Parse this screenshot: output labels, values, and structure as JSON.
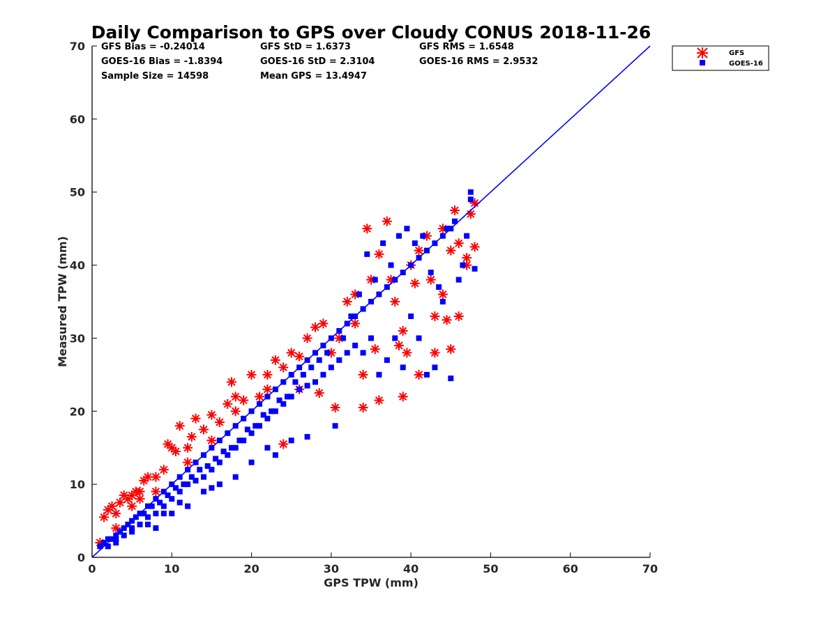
{
  "chart_data": {
    "type": "scatter",
    "title": "Daily Comparison to GPS over Cloudy CONUS 2018-11-26",
    "xlabel": "GPS TPW (mm)",
    "ylabel": "Measured TPW (mm)",
    "xlim": [
      0,
      70
    ],
    "ylim": [
      0,
      70
    ],
    "xticks": [
      "0",
      "10",
      "20",
      "30",
      "40",
      "50",
      "60",
      "70"
    ],
    "yticks": [
      "0",
      "10",
      "20",
      "30",
      "40",
      "50",
      "60",
      "70"
    ],
    "grid": false,
    "legend_position": "outside-top-right",
    "stats": [
      [
        "GFS Bias = -0.24014",
        "GFS StD = 1.6373",
        "GFS RMS = 1.6548"
      ],
      [
        "GOES-16 Bias = -1.8394",
        "GOES-16 StD = 2.3104",
        "GOES-16 RMS = 2.9532"
      ],
      [
        "Sample Size = 14598",
        "Mean GPS = 13.4947",
        ""
      ]
    ],
    "reference_line": {
      "x": [
        0,
        70
      ],
      "y": [
        0,
        70
      ],
      "color": "#0000ff"
    },
    "series": [
      {
        "name": "GFS",
        "marker": "asterisk",
        "color": "#ff0000",
        "points": [
          [
            1.5,
            5.5
          ],
          [
            2,
            6.5
          ],
          [
            2.5,
            7
          ],
          [
            3,
            6
          ],
          [
            3.5,
            7.5
          ],
          [
            4,
            8.5
          ],
          [
            4.5,
            8
          ],
          [
            5,
            8.5
          ],
          [
            5.5,
            9
          ],
          [
            6,
            9
          ],
          [
            6.5,
            10.5
          ],
          [
            7,
            11
          ],
          [
            8,
            11
          ],
          [
            9,
            12
          ],
          [
            9.5,
            15.5
          ],
          [
            10,
            15
          ],
          [
            10.5,
            14.5
          ],
          [
            11,
            18
          ],
          [
            12,
            15
          ],
          [
            12.5,
            16.5
          ],
          [
            13,
            19
          ],
          [
            14,
            17.5
          ],
          [
            15,
            19.5
          ],
          [
            16,
            18.5
          ],
          [
            17,
            21
          ],
          [
            17.5,
            24
          ],
          [
            18,
            22
          ],
          [
            19,
            21.5
          ],
          [
            20,
            25
          ],
          [
            21,
            22
          ],
          [
            22,
            23
          ],
          [
            23,
            27
          ],
          [
            24,
            26
          ],
          [
            24,
            15.5
          ],
          [
            25,
            28
          ],
          [
            26,
            27.5
          ],
          [
            27,
            30
          ],
          [
            28,
            31.5
          ],
          [
            28.5,
            22.5
          ],
          [
            29,
            32
          ],
          [
            30,
            28
          ],
          [
            30.5,
            20.5
          ],
          [
            31,
            30
          ],
          [
            32,
            35
          ],
          [
            33,
            36
          ],
          [
            34,
            25
          ],
          [
            34,
            20.5
          ],
          [
            34.5,
            45
          ],
          [
            35,
            38
          ],
          [
            35.5,
            28.5
          ],
          [
            36,
            41.5
          ],
          [
            36,
            21.5
          ],
          [
            37,
            46
          ],
          [
            37.5,
            38
          ],
          [
            38,
            35
          ],
          [
            38.5,
            29
          ],
          [
            39,
            22
          ],
          [
            39,
            31
          ],
          [
            40,
            40
          ],
          [
            40.5,
            37.5
          ],
          [
            41,
            42
          ],
          [
            41,
            25
          ],
          [
            42,
            44
          ],
          [
            42.5,
            38
          ],
          [
            43,
            33
          ],
          [
            43,
            28
          ],
          [
            44,
            45
          ],
          [
            44,
            36
          ],
          [
            44.5,
            32.5
          ],
          [
            45,
            42
          ],
          [
            45,
            28.5
          ],
          [
            45.5,
            47.5
          ],
          [
            46,
            43
          ],
          [
            46,
            33
          ],
          [
            47,
            40
          ],
          [
            47,
            41
          ],
          [
            47.5,
            47
          ],
          [
            48,
            42.5
          ],
          [
            48,
            48.5
          ],
          [
            39.5,
            28
          ],
          [
            33,
            32
          ],
          [
            26,
            23
          ],
          [
            22,
            25
          ],
          [
            18,
            20
          ],
          [
            15,
            16
          ],
          [
            12,
            13
          ],
          [
            8,
            9
          ],
          [
            6,
            8
          ],
          [
            5,
            7
          ],
          [
            3,
            4
          ],
          [
            1,
            2
          ]
        ]
      },
      {
        "name": "GOES-16",
        "marker": "square",
        "color": "#0000ff",
        "points": [
          [
            1,
            1.5
          ],
          [
            1.5,
            2
          ],
          [
            2,
            2.5
          ],
          [
            2.5,
            2.5
          ],
          [
            3,
            3
          ],
          [
            3,
            2
          ],
          [
            3.5,
            3.5
          ],
          [
            4,
            4
          ],
          [
            4,
            3
          ],
          [
            4.5,
            4.5
          ],
          [
            5,
            5
          ],
          [
            5,
            4
          ],
          [
            5.5,
            5.5
          ],
          [
            6,
            6
          ],
          [
            6,
            4.5
          ],
          [
            6.5,
            6
          ],
          [
            7,
            7
          ],
          [
            7,
            5.5
          ],
          [
            7.5,
            7
          ],
          [
            8,
            8
          ],
          [
            8,
            6
          ],
          [
            8.5,
            7.5
          ],
          [
            9,
            9
          ],
          [
            9,
            7
          ],
          [
            9.5,
            8.5
          ],
          [
            10,
            10
          ],
          [
            10,
            8
          ],
          [
            10.5,
            9.5
          ],
          [
            11,
            11
          ],
          [
            11,
            9
          ],
          [
            11.5,
            10
          ],
          [
            12,
            12
          ],
          [
            12,
            10
          ],
          [
            12.5,
            11
          ],
          [
            13,
            13
          ],
          [
            13,
            10.5
          ],
          [
            13.5,
            12
          ],
          [
            14,
            14
          ],
          [
            14,
            11
          ],
          [
            14.5,
            12.5
          ],
          [
            15,
            15
          ],
          [
            15,
            12
          ],
          [
            15.5,
            13.5
          ],
          [
            16,
            16
          ],
          [
            16,
            13
          ],
          [
            16.5,
            14.5
          ],
          [
            17,
            17
          ],
          [
            17,
            14
          ],
          [
            17.5,
            15
          ],
          [
            18,
            18
          ],
          [
            18,
            15
          ],
          [
            18.5,
            16
          ],
          [
            19,
            19
          ],
          [
            19,
            16
          ],
          [
            19.5,
            17.5
          ],
          [
            20,
            20
          ],
          [
            20,
            17
          ],
          [
            20.5,
            18
          ],
          [
            21,
            21
          ],
          [
            21,
            18
          ],
          [
            21.5,
            19.5
          ],
          [
            22,
            22
          ],
          [
            22,
            19
          ],
          [
            22.5,
            20
          ],
          [
            23,
            23
          ],
          [
            23,
            20
          ],
          [
            23.5,
            21.5
          ],
          [
            24,
            24
          ],
          [
            24,
            21
          ],
          [
            24.5,
            22
          ],
          [
            25,
            25
          ],
          [
            25,
            22
          ],
          [
            25.5,
            24
          ],
          [
            26,
            26
          ],
          [
            26,
            23
          ],
          [
            26.5,
            25
          ],
          [
            27,
            27
          ],
          [
            27,
            23.5
          ],
          [
            27.5,
            26
          ],
          [
            28,
            28
          ],
          [
            28,
            24
          ],
          [
            28.5,
            27
          ],
          [
            29,
            29
          ],
          [
            29,
            25
          ],
          [
            29.5,
            28
          ],
          [
            30,
            30
          ],
          [
            30,
            26
          ],
          [
            30.5,
            18
          ],
          [
            31,
            31
          ],
          [
            31,
            27
          ],
          [
            31.5,
            30
          ],
          [
            32,
            32
          ],
          [
            32,
            28
          ],
          [
            32.5,
            33
          ],
          [
            33,
            33
          ],
          [
            33,
            29
          ],
          [
            33.5,
            36
          ],
          [
            34,
            34
          ],
          [
            34,
            28
          ],
          [
            34.5,
            41.5
          ],
          [
            35,
            35
          ],
          [
            35,
            30
          ],
          [
            35.5,
            38
          ],
          [
            36,
            36
          ],
          [
            36,
            25
          ],
          [
            36.5,
            43
          ],
          [
            37,
            37
          ],
          [
            37,
            27
          ],
          [
            37.5,
            40
          ],
          [
            38,
            38
          ],
          [
            38,
            30
          ],
          [
            38.5,
            44
          ],
          [
            39,
            39
          ],
          [
            39,
            26
          ],
          [
            39.5,
            45
          ],
          [
            40,
            40
          ],
          [
            40,
            33
          ],
          [
            40.5,
            43
          ],
          [
            41,
            41
          ],
          [
            41,
            30
          ],
          [
            41.5,
            44
          ],
          [
            42,
            42
          ],
          [
            42,
            25
          ],
          [
            42.5,
            39
          ],
          [
            43,
            43
          ],
          [
            43,
            26
          ],
          [
            43.5,
            37
          ],
          [
            44,
            44
          ],
          [
            44,
            35
          ],
          [
            44.5,
            45
          ],
          [
            45,
            45
          ],
          [
            45,
            24.5
          ],
          [
            45.5,
            46
          ],
          [
            46,
            38
          ],
          [
            46.5,
            40
          ],
          [
            47,
            44
          ],
          [
            47.5,
            50
          ],
          [
            48,
            39.5
          ],
          [
            47.5,
            49
          ],
          [
            8,
            4
          ],
          [
            10,
            6
          ],
          [
            12,
            7
          ],
          [
            15,
            9.5
          ],
          [
            18,
            11
          ],
          [
            20,
            13
          ],
          [
            23,
            14
          ],
          [
            27,
            16.5
          ],
          [
            25,
            16
          ],
          [
            22,
            15
          ],
          [
            16,
            10
          ],
          [
            14,
            9
          ],
          [
            11,
            7.5
          ],
          [
            9,
            6
          ],
          [
            7,
            4.5
          ],
          [
            5,
            3.5
          ],
          [
            3,
            2.5
          ],
          [
            2,
            1.5
          ]
        ]
      }
    ]
  }
}
